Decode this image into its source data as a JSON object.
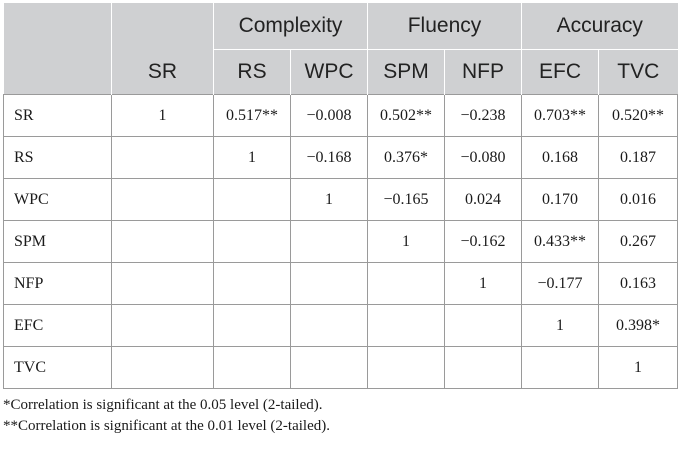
{
  "table": {
    "groups": [
      {
        "label": "Complexity",
        "span": 2
      },
      {
        "label": "Fluency",
        "span": 2
      },
      {
        "label": "Accuracy",
        "span": 2
      }
    ],
    "columns": [
      "SR",
      "RS",
      "WPC",
      "SPM",
      "NFP",
      "EFC",
      "TVC"
    ],
    "rows": [
      {
        "label": "SR",
        "cells": [
          "1",
          "0.517**",
          "−0.008",
          "0.502**",
          "−0.238",
          "0.703**",
          "0.520**"
        ]
      },
      {
        "label": "RS",
        "cells": [
          "",
          "1",
          "−0.168",
          "0.376*",
          "−0.080",
          "0.168",
          "0.187"
        ]
      },
      {
        "label": "WPC",
        "cells": [
          "",
          "",
          "1",
          "−0.165",
          "0.024",
          "0.170",
          "0.016"
        ]
      },
      {
        "label": "SPM",
        "cells": [
          "",
          "",
          "",
          "1",
          "−0.162",
          "0.433**",
          "0.267"
        ]
      },
      {
        "label": "NFP",
        "cells": [
          "",
          "",
          "",
          "",
          "1",
          "−0.177",
          "0.163"
        ]
      },
      {
        "label": "EFC",
        "cells": [
          "",
          "",
          "",
          "",
          "",
          "1",
          "0.398*"
        ]
      },
      {
        "label": "TVC",
        "cells": [
          "",
          "",
          "",
          "",
          "",
          "",
          "1"
        ]
      }
    ]
  },
  "footnotes": [
    "*Correlation is significant at the 0.05 level (2-tailed).",
    "**Correlation is significant at the 0.01 level (2-tailed)."
  ],
  "colors": {
    "header_bg": "#cfd0d2",
    "border": "#9a9a9a"
  }
}
